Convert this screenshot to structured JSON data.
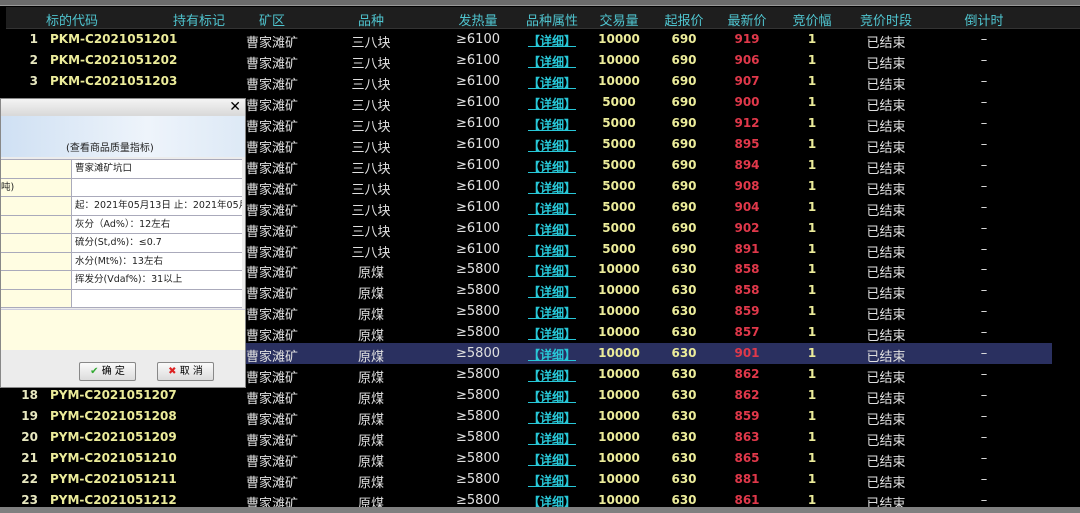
{
  "columns": [
    "标的代码",
    "持有标记",
    "矿区",
    "品种",
    "发热量",
    "品种属性",
    "交易量",
    "起报价",
    "最新价",
    "竞价幅",
    "竞价时段",
    "倒计时"
  ],
  "rows": [
    {
      "n": "1",
      "code": "PKM-C2021051201",
      "area": "曹家滩矿",
      "kind": "三八块",
      "heat": "≥6100",
      "attr": "【详细】",
      "vol": "10000",
      "start": "690",
      "last": "919",
      "step": "1",
      "period": "已结束",
      "cd": "–"
    },
    {
      "n": "2",
      "code": "PKM-C2021051202",
      "area": "曹家滩矿",
      "kind": "三八块",
      "heat": "≥6100",
      "attr": "【详细】",
      "vol": "10000",
      "start": "690",
      "last": "906",
      "step": "1",
      "period": "已结束",
      "cd": "–"
    },
    {
      "n": "3",
      "code": "PKM-C2021051203",
      "area": "曹家滩矿",
      "kind": "三八块",
      "heat": "≥6100",
      "attr": "【详细】",
      "vol": "10000",
      "start": "690",
      "last": "907",
      "step": "1",
      "period": "已结束",
      "cd": "–"
    },
    {
      "n": "",
      "code": "",
      "area": "曹家滩矿",
      "kind": "三八块",
      "heat": "≥6100",
      "attr": "【详细】",
      "vol": "5000",
      "start": "690",
      "last": "900",
      "step": "1",
      "period": "已结束",
      "cd": "–"
    },
    {
      "n": "",
      "code": "",
      "area": "曹家滩矿",
      "kind": "三八块",
      "heat": "≥6100",
      "attr": "【详细】",
      "vol": "5000",
      "start": "690",
      "last": "912",
      "step": "1",
      "period": "已结束",
      "cd": "–"
    },
    {
      "n": "",
      "code": "",
      "area": "曹家滩矿",
      "kind": "三八块",
      "heat": "≥6100",
      "attr": "【详细】",
      "vol": "5000",
      "start": "690",
      "last": "895",
      "step": "1",
      "period": "已结束",
      "cd": "–"
    },
    {
      "n": "",
      "code": "",
      "area": "曹家滩矿",
      "kind": "三八块",
      "heat": "≥6100",
      "attr": "【详细】",
      "vol": "5000",
      "start": "690",
      "last": "894",
      "step": "1",
      "period": "已结束",
      "cd": "–"
    },
    {
      "n": "",
      "code": "",
      "area": "曹家滩矿",
      "kind": "三八块",
      "heat": "≥6100",
      "attr": "【详细】",
      "vol": "5000",
      "start": "690",
      "last": "908",
      "step": "1",
      "period": "已结束",
      "cd": "–"
    },
    {
      "n": "",
      "code": "",
      "area": "曹家滩矿",
      "kind": "三八块",
      "heat": "≥6100",
      "attr": "【详细】",
      "vol": "5000",
      "start": "690",
      "last": "904",
      "step": "1",
      "period": "已结束",
      "cd": "–"
    },
    {
      "n": "",
      "code": "",
      "area": "曹家滩矿",
      "kind": "三八块",
      "heat": "≥6100",
      "attr": "【详细】",
      "vol": "5000",
      "start": "690",
      "last": "902",
      "step": "1",
      "period": "已结束",
      "cd": "–"
    },
    {
      "n": "",
      "code": "",
      "area": "曹家滩矿",
      "kind": "三八块",
      "heat": "≥6100",
      "attr": "【详细】",
      "vol": "5000",
      "start": "690",
      "last": "891",
      "step": "1",
      "period": "已结束",
      "cd": "–"
    },
    {
      "n": "",
      "code": "",
      "area": "曹家滩矿",
      "kind": "原煤",
      "heat": "≥5800",
      "attr": "【详细】",
      "vol": "10000",
      "start": "630",
      "last": "858",
      "step": "1",
      "period": "已结束",
      "cd": "–"
    },
    {
      "n": "",
      "code": "",
      "area": "曹家滩矿",
      "kind": "原煤",
      "heat": "≥5800",
      "attr": "【详细】",
      "vol": "10000",
      "start": "630",
      "last": "858",
      "step": "1",
      "period": "已结束",
      "cd": "–"
    },
    {
      "n": "",
      "code": "",
      "area": "曹家滩矿",
      "kind": "原煤",
      "heat": "≥5800",
      "attr": "【详细】",
      "vol": "10000",
      "start": "630",
      "last": "859",
      "step": "1",
      "period": "已结束",
      "cd": "–"
    },
    {
      "n": "",
      "code": "",
      "area": "曹家滩矿",
      "kind": "原煤",
      "heat": "≥5800",
      "attr": "【详细】",
      "vol": "10000",
      "start": "630",
      "last": "857",
      "step": "1",
      "period": "已结束",
      "cd": "–"
    },
    {
      "n": "",
      "code": "",
      "area": "曹家滩矿",
      "kind": "原煤",
      "heat": "≥5800",
      "attr": "【详细】",
      "vol": "10000",
      "start": "630",
      "last": "901",
      "step": "1",
      "period": "已结束",
      "cd": "–",
      "selected": true
    },
    {
      "n": "",
      "code": "",
      "area": "曹家滩矿",
      "kind": "原煤",
      "heat": "≥5800",
      "attr": "【详细】",
      "vol": "10000",
      "start": "630",
      "last": "862",
      "step": "1",
      "period": "已结束",
      "cd": "–"
    },
    {
      "n": "18",
      "code": "PYM-C2021051207",
      "area": "曹家滩矿",
      "kind": "原煤",
      "heat": "≥5800",
      "attr": "【详细】",
      "vol": "10000",
      "start": "630",
      "last": "862",
      "step": "1",
      "period": "已结束",
      "cd": "–"
    },
    {
      "n": "19",
      "code": "PYM-C2021051208",
      "area": "曹家滩矿",
      "kind": "原煤",
      "heat": "≥5800",
      "attr": "【详细】",
      "vol": "10000",
      "start": "630",
      "last": "859",
      "step": "1",
      "period": "已结束",
      "cd": "–"
    },
    {
      "n": "20",
      "code": "PYM-C2021051209",
      "area": "曹家滩矿",
      "kind": "原煤",
      "heat": "≥5800",
      "attr": "【详细】",
      "vol": "10000",
      "start": "630",
      "last": "863",
      "step": "1",
      "period": "已结束",
      "cd": "–"
    },
    {
      "n": "21",
      "code": "PYM-C2021051210",
      "area": "曹家滩矿",
      "kind": "原煤",
      "heat": "≥5800",
      "attr": "【详细】",
      "vol": "10000",
      "start": "630",
      "last": "865",
      "step": "1",
      "period": "已结束",
      "cd": "–"
    },
    {
      "n": "22",
      "code": "PYM-C2021051211",
      "area": "曹家滩矿",
      "kind": "原煤",
      "heat": "≥5800",
      "attr": "【详细】",
      "vol": "10000",
      "start": "630",
      "last": "881",
      "step": "1",
      "period": "已结束",
      "cd": "–"
    },
    {
      "n": "23",
      "code": "PYM-C2021051212",
      "area": "曹家滩矿",
      "kind": "原煤",
      "heat": "≥5800",
      "attr": "【详细】",
      "vol": "10000",
      "start": "630",
      "last": "861",
      "step": "1",
      "period": "已结束",
      "cd": "–"
    }
  ],
  "dialog": {
    "close": "✕",
    "subtitle": "(查看商品质量指标)",
    "rows": [
      {
        "label": "",
        "value": "曹家滩矿坑口"
      },
      {
        "label": "吨)",
        "value": ""
      },
      {
        "label": "",
        "value": "起：2021年05月13日 止：2021年05月1"
      },
      {
        "label": "",
        "value": "灰分（Ad%）：12左右"
      },
      {
        "label": "",
        "value": "硫分(St,d%)：≤0.7"
      },
      {
        "label": "",
        "value": "水分(Mt%)：13左右"
      },
      {
        "label": "",
        "value": "挥发分(Vdaf%)：31以上"
      },
      {
        "label": "",
        "value": ""
      }
    ],
    "ok": "确 定",
    "cancel": "取 消"
  },
  "colors": {
    "header": "#4fc4cf",
    "code": "#ecec9a",
    "price": "#e0384a",
    "link": "#28c8d8",
    "selected_row": "#2a3060"
  }
}
